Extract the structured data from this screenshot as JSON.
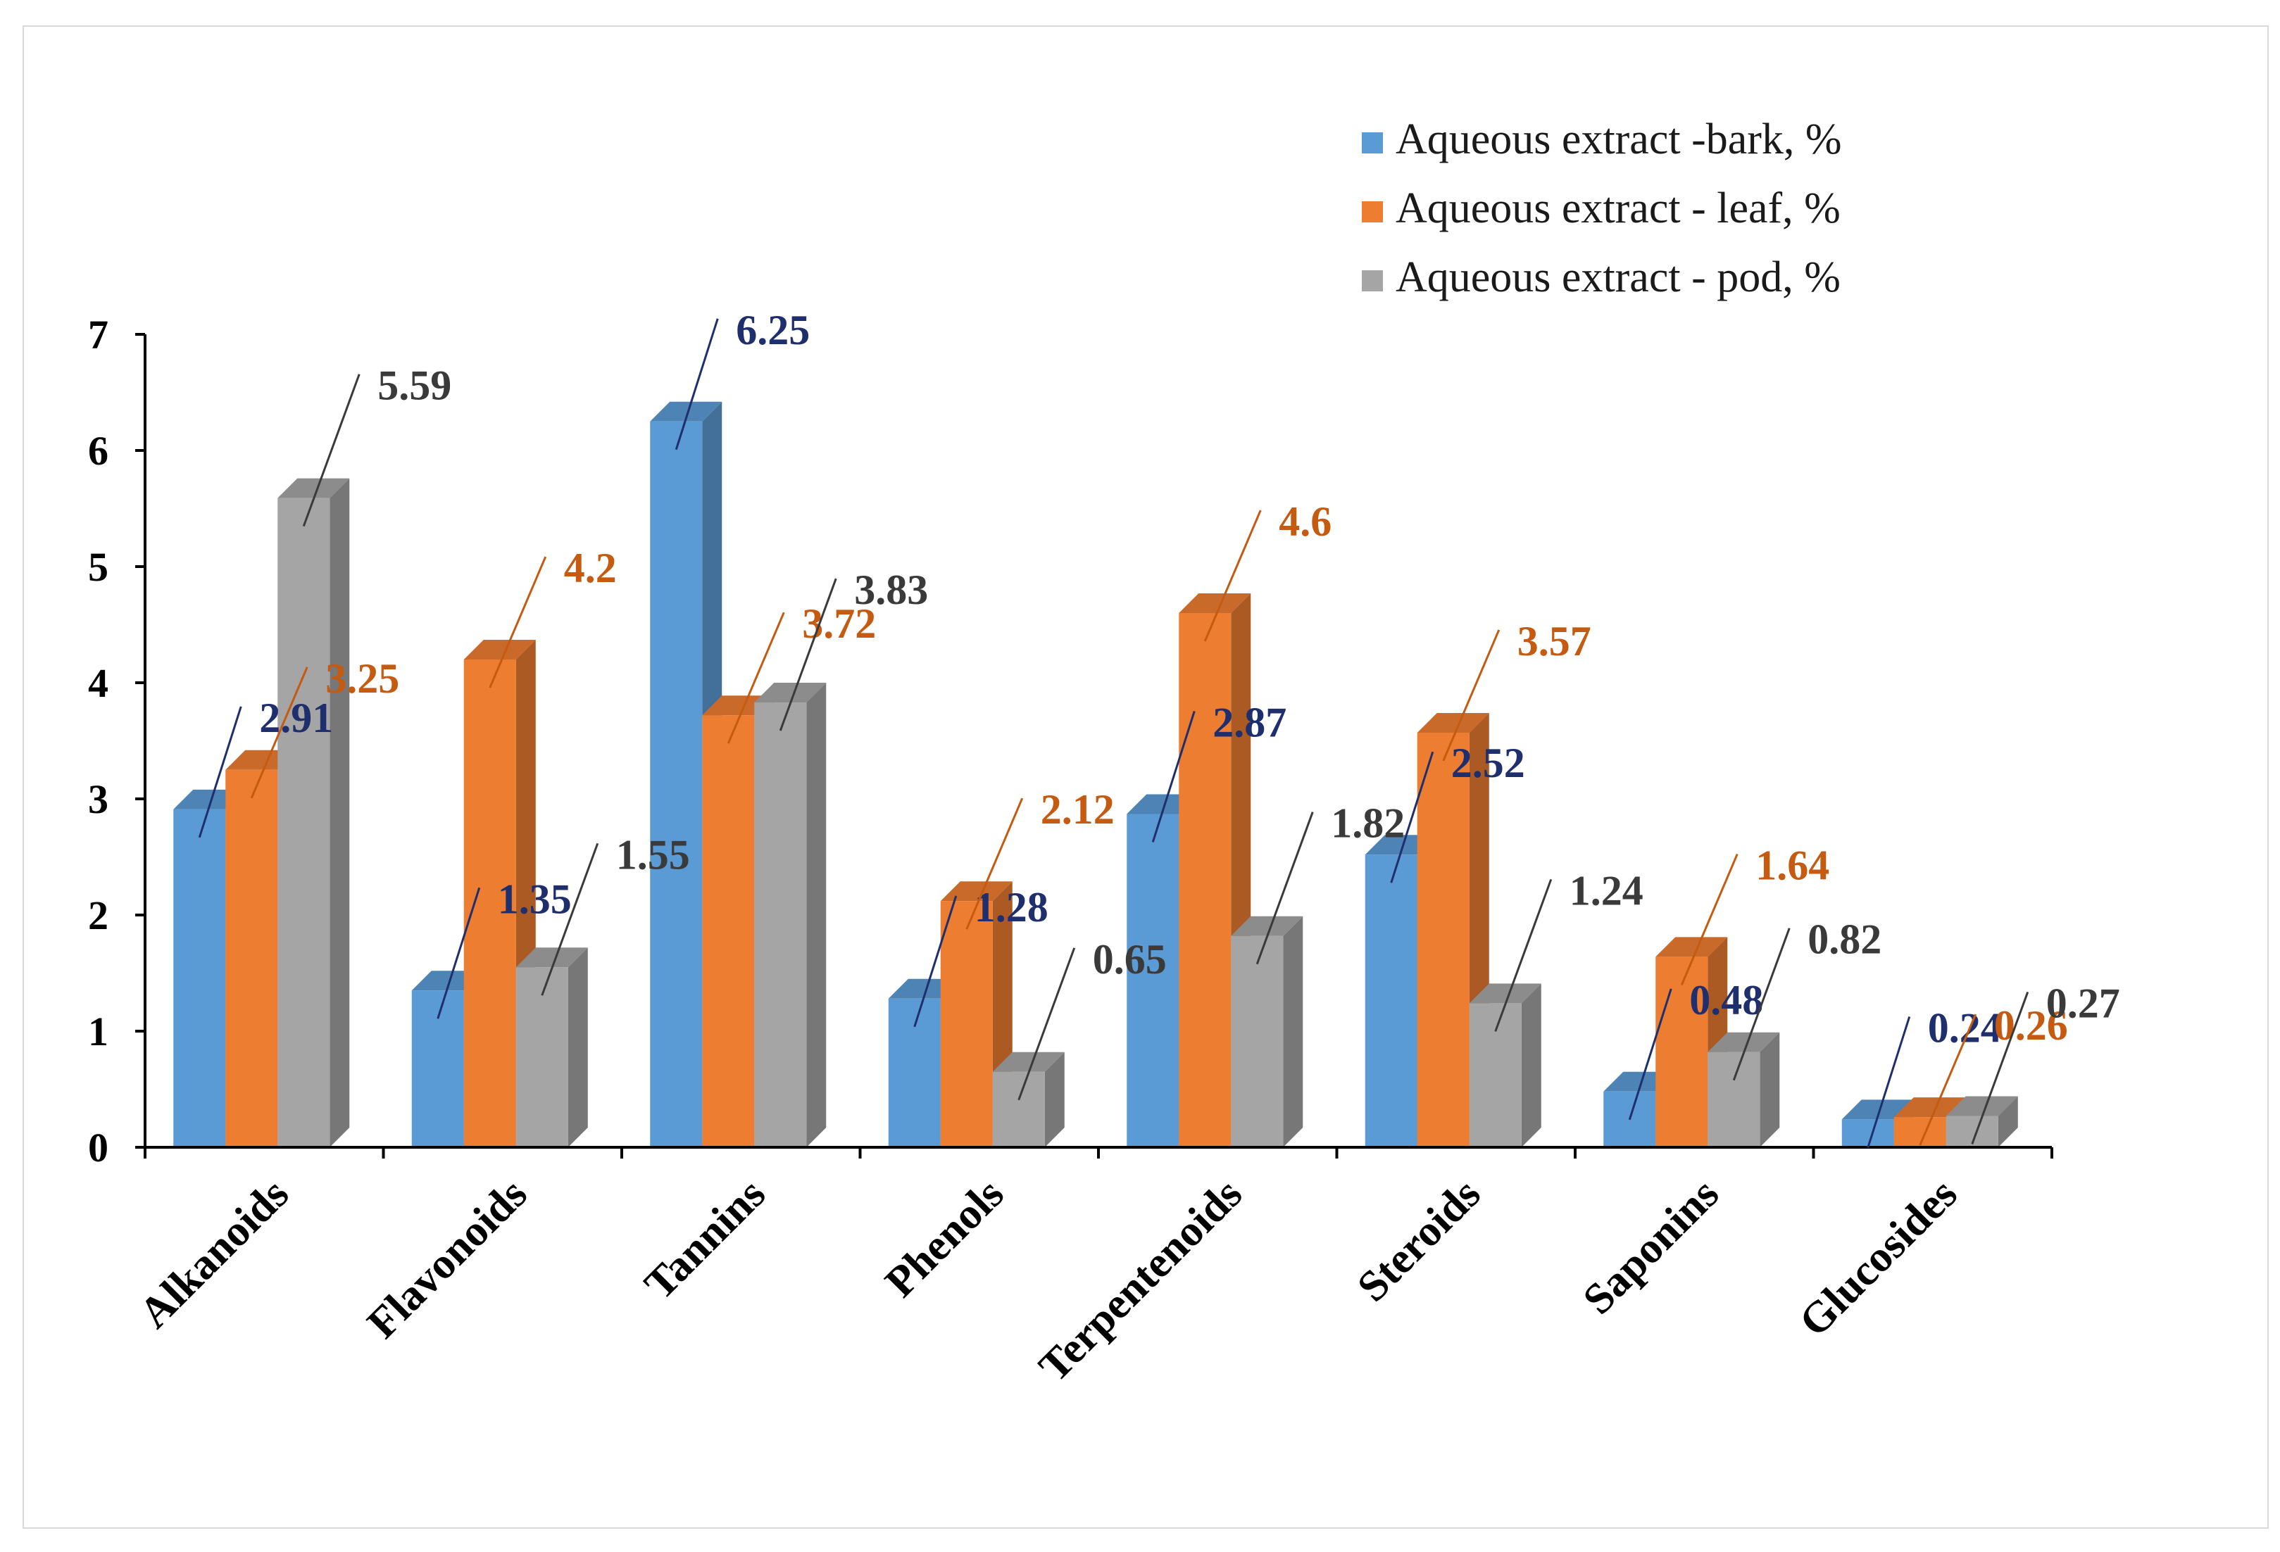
{
  "chart_data": {
    "type": "bar",
    "style": "3d-clustered",
    "title": "",
    "xlabel": "",
    "ylabel": "",
    "ylim": [
      0,
      7
    ],
    "yticks": [
      "0",
      "1",
      "2",
      "3",
      "4",
      "5",
      "6",
      "7"
    ],
    "legend_position": "top-right",
    "categories": [
      "Alkanoids",
      "Flavonoids",
      "Tannins",
      "Phenols",
      "Terpentenoids",
      "Steroids",
      "Saponins",
      "Glucosides"
    ],
    "series": [
      {
        "name": "Aqueous extract -bark, %",
        "color": "#5b9bd5",
        "label_color": "#1f2f6e",
        "values": [
          2.91,
          1.35,
          6.25,
          1.28,
          2.87,
          2.52,
          0.48,
          0.24
        ],
        "labels": [
          "2.91",
          "1.35",
          "6.25",
          "1.28",
          "2.87",
          "2.52",
          "0.48",
          "0.24"
        ]
      },
      {
        "name": "Aqueous extract - leaf, %",
        "color": "#ed7d31",
        "label_color": "#c55a11",
        "values": [
          3.25,
          4.2,
          3.72,
          2.12,
          4.6,
          3.57,
          1.64,
          0.26
        ],
        "labels": [
          "3.25",
          "4.2",
          "3.72",
          "2.12",
          "4.6",
          "3.57",
          "1.64",
          "0.26"
        ]
      },
      {
        "name": "Aqueous extract - pod, %",
        "color": "#a5a5a5",
        "label_color": "#3a3a3a",
        "values": [
          5.59,
          1.55,
          3.83,
          0.65,
          1.82,
          1.24,
          0.82,
          0.27
        ],
        "labels": [
          "5.59",
          "1.55",
          "3.83",
          "0.65",
          "1.82",
          "1.24",
          "0.82",
          "0.27"
        ]
      }
    ]
  }
}
